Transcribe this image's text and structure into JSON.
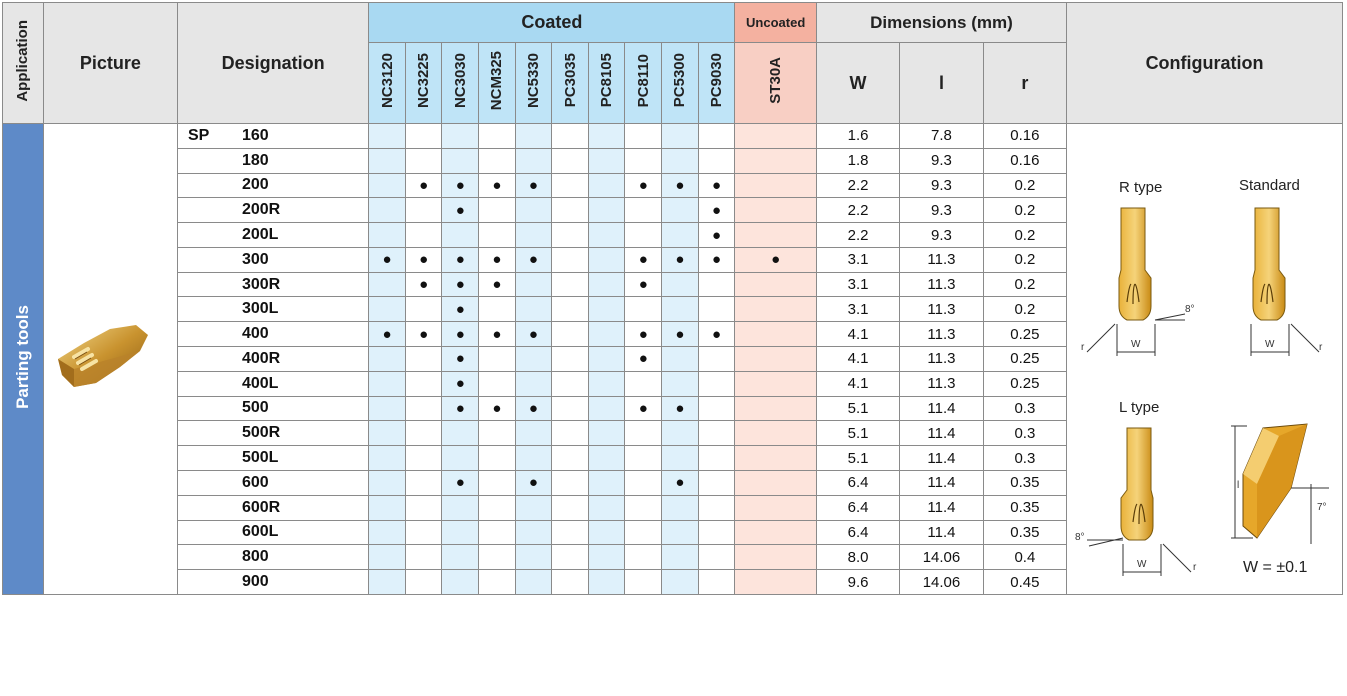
{
  "headers": {
    "application": "Application",
    "picture": "Picture",
    "designation": "Designation",
    "coated": "Coated",
    "uncoated": "Uncoated",
    "dimensions": "Dimensions (mm)",
    "configuration": "Configuration",
    "w": "W",
    "l": "l",
    "r": "r"
  },
  "coated_grades": [
    "NC3120",
    "NC3225",
    "NC3030",
    "NCM325",
    "NC5330",
    "PC3035",
    "PC8105",
    "PC8110",
    "PC5300",
    "PC9030"
  ],
  "uncoated_grades": [
    "ST30A"
  ],
  "application_label": "Parting tools",
  "series_prefix": "SP",
  "dot": "●",
  "rows": [
    {
      "d": "160",
      "g": [
        0,
        0,
        0,
        0,
        0,
        0,
        0,
        0,
        0,
        0,
        0
      ],
      "w": "1.6",
      "l": "7.8",
      "r": "0.16"
    },
    {
      "d": "180",
      "g": [
        0,
        0,
        0,
        0,
        0,
        0,
        0,
        0,
        0,
        0,
        0
      ],
      "w": "1.8",
      "l": "9.3",
      "r": "0.16"
    },
    {
      "d": "200",
      "g": [
        0,
        1,
        1,
        1,
        1,
        0,
        0,
        1,
        1,
        1,
        0
      ],
      "w": "2.2",
      "l": "9.3",
      "r": "0.2"
    },
    {
      "d": "200R",
      "g": [
        0,
        0,
        1,
        0,
        0,
        0,
        0,
        0,
        0,
        1,
        0
      ],
      "w": "2.2",
      "l": "9.3",
      "r": "0.2"
    },
    {
      "d": "200L",
      "g": [
        0,
        0,
        0,
        0,
        0,
        0,
        0,
        0,
        0,
        1,
        0
      ],
      "w": "2.2",
      "l": "9.3",
      "r": "0.2"
    },
    {
      "d": "300",
      "g": [
        1,
        1,
        1,
        1,
        1,
        0,
        0,
        1,
        1,
        1,
        1
      ],
      "w": "3.1",
      "l": "11.3",
      "r": "0.2"
    },
    {
      "d": "300R",
      "g": [
        0,
        1,
        1,
        1,
        0,
        0,
        0,
        1,
        0,
        0,
        0
      ],
      "w": "3.1",
      "l": "11.3",
      "r": "0.2"
    },
    {
      "d": "300L",
      "g": [
        0,
        0,
        1,
        0,
        0,
        0,
        0,
        0,
        0,
        0,
        0
      ],
      "w": "3.1",
      "l": "11.3",
      "r": "0.2"
    },
    {
      "d": "400",
      "g": [
        1,
        1,
        1,
        1,
        1,
        0,
        0,
        1,
        1,
        1,
        0
      ],
      "w": "4.1",
      "l": "11.3",
      "r": "0.25"
    },
    {
      "d": "400R",
      "g": [
        0,
        0,
        1,
        0,
        0,
        0,
        0,
        1,
        0,
        0,
        0
      ],
      "w": "4.1",
      "l": "11.3",
      "r": "0.25"
    },
    {
      "d": "400L",
      "g": [
        0,
        0,
        1,
        0,
        0,
        0,
        0,
        0,
        0,
        0,
        0
      ],
      "w": "4.1",
      "l": "11.3",
      "r": "0.25"
    },
    {
      "d": "500",
      "g": [
        0,
        0,
        1,
        1,
        1,
        0,
        0,
        1,
        1,
        0,
        0
      ],
      "w": "5.1",
      "l": "11.4",
      "r": "0.3"
    },
    {
      "d": "500R",
      "g": [
        0,
        0,
        0,
        0,
        0,
        0,
        0,
        0,
        0,
        0,
        0
      ],
      "w": "5.1",
      "l": "11.4",
      "r": "0.3"
    },
    {
      "d": "500L",
      "g": [
        0,
        0,
        0,
        0,
        0,
        0,
        0,
        0,
        0,
        0,
        0
      ],
      "w": "5.1",
      "l": "11.4",
      "r": "0.3"
    },
    {
      "d": "600",
      "g": [
        0,
        0,
        1,
        0,
        1,
        0,
        0,
        0,
        1,
        0,
        0
      ],
      "w": "6.4",
      "l": "11.4",
      "r": "0.35"
    },
    {
      "d": "600R",
      "g": [
        0,
        0,
        0,
        0,
        0,
        0,
        0,
        0,
        0,
        0,
        0
      ],
      "w": "6.4",
      "l": "11.4",
      "r": "0.35"
    },
    {
      "d": "600L",
      "g": [
        0,
        0,
        0,
        0,
        0,
        0,
        0,
        0,
        0,
        0,
        0
      ],
      "w": "6.4",
      "l": "11.4",
      "r": "0.35"
    },
    {
      "d": "800",
      "g": [
        0,
        0,
        0,
        0,
        0,
        0,
        0,
        0,
        0,
        0,
        0
      ],
      "w": "8.0",
      "l": "14.06",
      "r": "0.4"
    },
    {
      "d": "900",
      "g": [
        0,
        0,
        0,
        0,
        0,
        0,
        0,
        0,
        0,
        0,
        0
      ],
      "w": "9.6",
      "l": "14.06",
      "r": "0.45"
    }
  ],
  "configuration": {
    "r_type": "R type",
    "standard": "Standard",
    "l_type": "L type",
    "angle_8": "8°",
    "angle_7": "7°",
    "w": "W",
    "r": "r",
    "l": "l",
    "tolerance": "W = ±0.1"
  }
}
